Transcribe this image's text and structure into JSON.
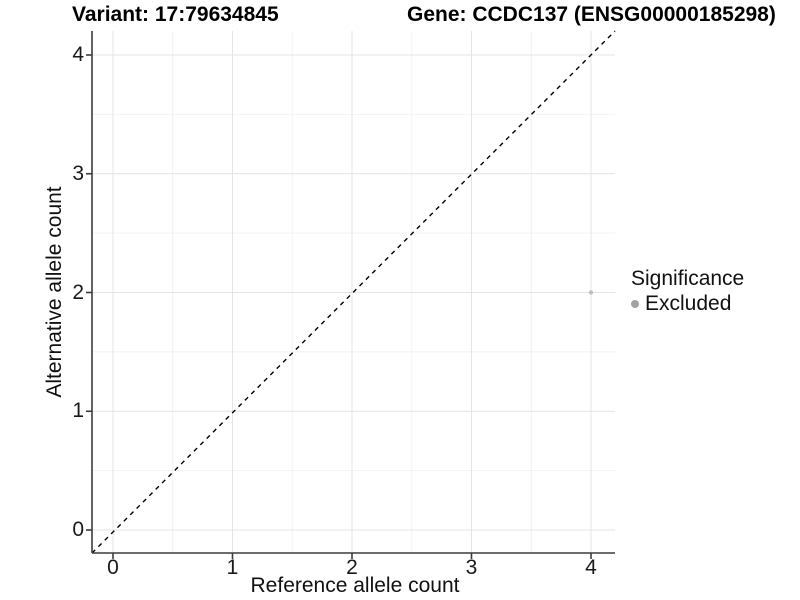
{
  "chart_data": {
    "type": "scatter",
    "title_left": "Variant: 17:79634845",
    "title_right": "Gene: CCDC137 (ENSG00000185298)",
    "xlabel": "Reference allele count",
    "ylabel": "Alternative allele count",
    "x_ticks": [
      0,
      1,
      2,
      3,
      4
    ],
    "y_ticks": [
      0,
      1,
      2,
      3,
      4
    ],
    "xlim": [
      -0.2,
      4.2
    ],
    "ylim": [
      -0.2,
      4.2
    ],
    "grid": true,
    "reference_line": {
      "kind": "identity",
      "style": "dashed",
      "color": "#000000"
    },
    "points": [
      {
        "x": 4,
        "y": 2,
        "series": "Excluded"
      }
    ],
    "series": [
      {
        "name": "Excluded",
        "color": "#bfbfbf"
      }
    ],
    "legend": {
      "title": "Significance",
      "position": "right",
      "entries": [
        {
          "label": "Excluded",
          "color": "#a3a3a3"
        }
      ]
    },
    "colors": {
      "major_grid": "#e4e4e4",
      "minor_grid": "#f2f2f2",
      "axis_line": "#3c3c3c",
      "point": "#bfbfbf",
      "background": "#ffffff"
    }
  }
}
